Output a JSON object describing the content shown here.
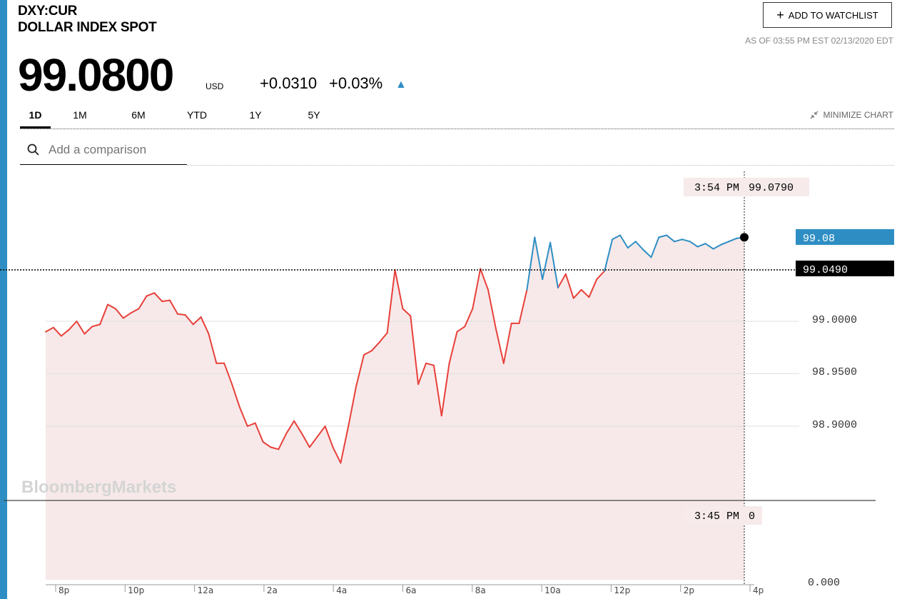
{
  "header": {
    "ticker": "DXY:CUR",
    "name": "DOLLAR INDEX SPOT",
    "price": "99.0800",
    "currency": "USD",
    "change": "+0.0310",
    "change_pct": "+0.03%",
    "as_of": "AS OF 03:55 PM EST 02/13/2020 EDT",
    "watchlist_label": "ADD TO WATCHLIST"
  },
  "tabs": [
    {
      "label": "1D",
      "active": true
    },
    {
      "label": "1M"
    },
    {
      "label": "6M"
    },
    {
      "label": "YTD"
    },
    {
      "label": "1Y"
    },
    {
      "label": "5Y"
    }
  ],
  "minimize_label": "MINIMIZE CHART",
  "comparison": {
    "placeholder": "Add a comparison"
  },
  "watermark": "BloombergMarkets",
  "colors": {
    "accent": "#2e8ec4",
    "down_line": "#e8403a",
    "up_line": "#2e8ec4",
    "fill": "#f7e9e9"
  },
  "chart_data": {
    "type": "line",
    "x_ticks": [
      "8p",
      "10p",
      "12a",
      "2a",
      "4a",
      "6a",
      "8a",
      "10a",
      "12p",
      "2p",
      "4p"
    ],
    "price_ticks": [
      "99.0000",
      "98.9500",
      "98.9000"
    ],
    "volume_ticks": [
      "0.000"
    ],
    "reference_value": "99.0490",
    "last_value": "99.08",
    "ylim": [
      98.84,
      99.11
    ],
    "crosshair": {
      "time": "3:54 PM",
      "value": "99.0790"
    },
    "volume_crosshair": {
      "time": "3:45 PM",
      "value": "0"
    },
    "series": [
      {
        "color_above_reference": "#2e8ec4",
        "color_below_reference": "#e8403a",
        "points": [
          [
            0.0,
            98.99
          ],
          [
            0.5,
            98.994
          ],
          [
            1.0,
            98.986
          ],
          [
            1.5,
            98.992
          ],
          [
            2.0,
            99.0
          ],
          [
            2.5,
            98.988
          ],
          [
            3.0,
            98.995
          ],
          [
            3.5,
            98.997
          ],
          [
            4.0,
            99.016
          ],
          [
            4.5,
            99.012
          ],
          [
            5.0,
            99.003
          ],
          [
            5.5,
            99.008
          ],
          [
            6.0,
            99.012
          ],
          [
            6.5,
            99.024
          ],
          [
            7.0,
            99.027
          ],
          [
            7.5,
            99.019
          ],
          [
            8.0,
            99.02
          ],
          [
            8.5,
            99.007
          ],
          [
            9.0,
            99.006
          ],
          [
            9.5,
            98.997
          ],
          [
            10.0,
            99.004
          ],
          [
            10.5,
            98.988
          ],
          [
            11.0,
            98.96
          ],
          [
            11.5,
            98.96
          ],
          [
            12.0,
            98.94
          ],
          [
            12.5,
            98.918
          ],
          [
            13.0,
            98.9
          ],
          [
            13.5,
            98.903
          ],
          [
            14.0,
            98.885
          ],
          [
            14.5,
            98.88
          ],
          [
            15.0,
            98.878
          ],
          [
            15.5,
            98.893
          ],
          [
            16.0,
            98.905
          ],
          [
            16.5,
            98.893
          ],
          [
            17.0,
            98.88
          ],
          [
            17.5,
            98.89
          ],
          [
            18.0,
            98.9
          ],
          [
            18.5,
            98.88
          ],
          [
            19.0,
            98.865
          ],
          [
            19.5,
            98.9
          ],
          [
            20.0,
            98.938
          ],
          [
            20.5,
            98.968
          ],
          [
            21.0,
            98.972
          ],
          [
            21.5,
            98.98
          ],
          [
            22.0,
            98.989
          ],
          [
            22.5,
            99.049
          ],
          [
            23.0,
            99.012
          ],
          [
            23.5,
            99.005
          ],
          [
            24.0,
            98.94
          ],
          [
            24.5,
            98.96
          ],
          [
            25.0,
            98.958
          ],
          [
            25.5,
            98.91
          ],
          [
            26.0,
            98.96
          ],
          [
            26.5,
            98.99
          ],
          [
            27.0,
            98.995
          ],
          [
            27.5,
            99.012
          ],
          [
            28.0,
            99.05
          ],
          [
            28.5,
            99.03
          ],
          [
            29.0,
            98.993
          ],
          [
            29.5,
            98.96
          ],
          [
            30.0,
            98.998
          ],
          [
            30.5,
            98.998
          ],
          [
            31.0,
            99.03
          ],
          [
            31.5,
            99.08
          ],
          [
            32.0,
            99.04
          ],
          [
            32.5,
            99.075
          ],
          [
            33.0,
            99.032
          ],
          [
            33.5,
            99.045
          ],
          [
            34.0,
            99.022
          ],
          [
            34.5,
            99.03
          ],
          [
            35.0,
            99.023
          ],
          [
            35.5,
            99.04
          ],
          [
            36.0,
            99.048
          ],
          [
            36.5,
            99.078
          ],
          [
            37.0,
            99.082
          ],
          [
            37.5,
            99.07
          ],
          [
            38.0,
            99.076
          ],
          [
            38.5,
            99.068
          ],
          [
            39.0,
            99.061
          ],
          [
            39.5,
            99.08
          ],
          [
            40.0,
            99.082
          ],
          [
            40.5,
            99.076
          ],
          [
            41.0,
            99.078
          ],
          [
            41.5,
            99.076
          ],
          [
            42.0,
            99.071
          ],
          [
            42.5,
            99.074
          ],
          [
            43.0,
            99.069
          ],
          [
            43.5,
            99.073
          ],
          [
            44.0,
            99.076
          ],
          [
            44.5,
            99.079
          ],
          [
            45.0,
            99.08
          ]
        ]
      }
    ]
  }
}
